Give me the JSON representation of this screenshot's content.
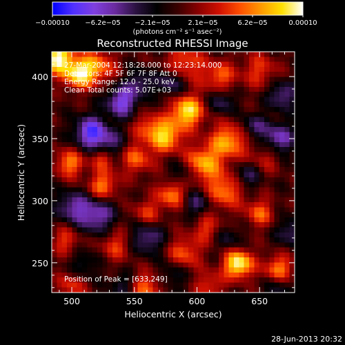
{
  "colorbar": {
    "ticks": [
      "−0.00010",
      "−6.2e−05",
      "−2.1e−05",
      "2.1e−05",
      "6.2e−05",
      "0.00010"
    ],
    "unit_label": "(photons cm⁻² s⁻¹ asec⁻²)",
    "colors": [
      "#0000ff",
      "#5030ff",
      "#7f3fe0",
      "#6a2a9e",
      "#2a1240",
      "#000000",
      "#3a0000",
      "#8a0000",
      "#d01000",
      "#ff5000",
      "#ff9a00",
      "#ffe000",
      "#ffffff"
    ]
  },
  "chart_data": {
    "type": "heatmap",
    "title": "Reconstructed RHESSI Image",
    "xlabel": "Heliocentric X (arcsec)",
    "ylabel": "Heliocentric Y (arcsec)",
    "xlim": [
      484,
      678
    ],
    "ylim": [
      226,
      420
    ],
    "xticks": [
      500,
      550,
      600,
      650
    ],
    "yticks": [
      250,
      300,
      350,
      400
    ],
    "zlim": [
      -0.0001,
      0.0001
    ],
    "info_lines": [
      "27-Mar-2004 12:18:28.000 to 12:23:14.000",
      "Detectors: 4F 5F 6F 7F 8F  Att 0",
      "Energy Range: 12.0 - 25.0 keV",
      "Clean    Total counts: 5.07E+03"
    ],
    "peak_label": "Position of Peak = [633,249]",
    "peak": [
      633,
      249
    ],
    "sources": [
      {
        "x": 488,
        "y": 415,
        "w": 0.0001,
        "s": 9
      },
      {
        "x": 505,
        "y": 402,
        "w": 8e-05,
        "s": 8
      },
      {
        "x": 520,
        "y": 408,
        "w": 6e-05,
        "s": 10
      },
      {
        "x": 590,
        "y": 410,
        "w": 5e-05,
        "s": 11
      },
      {
        "x": 618,
        "y": 400,
        "w": 5e-05,
        "s": 9
      },
      {
        "x": 650,
        "y": 405,
        "w": 4e-05,
        "s": 10
      },
      {
        "x": 592,
        "y": 372,
        "w": 9e-05,
        "s": 9
      },
      {
        "x": 575,
        "y": 352,
        "w": 8e-05,
        "s": 9
      },
      {
        "x": 560,
        "y": 360,
        "w": 4e-05,
        "s": 8
      },
      {
        "x": 625,
        "y": 348,
        "w": 7e-05,
        "s": 10
      },
      {
        "x": 498,
        "y": 330,
        "w": 6e-05,
        "s": 8
      },
      {
        "x": 525,
        "y": 335,
        "w": 5e-05,
        "s": 7
      },
      {
        "x": 552,
        "y": 334,
        "w": 5e-05,
        "s": 9
      },
      {
        "x": 605,
        "y": 330,
        "w": 7e-05,
        "s": 10
      },
      {
        "x": 655,
        "y": 335,
        "w": 3e-05,
        "s": 9
      },
      {
        "x": 525,
        "y": 312,
        "w": 6e-05,
        "s": 8
      },
      {
        "x": 580,
        "y": 305,
        "w": 6e-05,
        "s": 8
      },
      {
        "x": 622,
        "y": 308,
        "w": 6e-05,
        "s": 10
      },
      {
        "x": 560,
        "y": 290,
        "w": 4e-05,
        "s": 8
      },
      {
        "x": 650,
        "y": 290,
        "w": 5e-05,
        "s": 8
      },
      {
        "x": 608,
        "y": 278,
        "w": 4e-05,
        "s": 8
      },
      {
        "x": 495,
        "y": 268,
        "w": 4e-05,
        "s": 8
      },
      {
        "x": 535,
        "y": 264,
        "w": 4e-05,
        "s": 9
      },
      {
        "x": 590,
        "y": 258,
        "w": 5e-05,
        "s": 9
      },
      {
        "x": 633,
        "y": 249,
        "w": 0.0001,
        "s": 8
      },
      {
        "x": 665,
        "y": 245,
        "w": 6e-05,
        "s": 8
      },
      {
        "x": 500,
        "y": 232,
        "w": 4e-05,
        "s": 8
      },
      {
        "x": 560,
        "y": 230,
        "w": 5e-05,
        "s": 9
      },
      {
        "x": 610,
        "y": 232,
        "w": 4e-05,
        "s": 8
      },
      {
        "x": 540,
        "y": 380,
        "w": -7e-05,
        "s": 9
      },
      {
        "x": 515,
        "y": 355,
        "w": -8e-05,
        "s": 9
      },
      {
        "x": 530,
        "y": 345,
        "w": -5e-05,
        "s": 8
      },
      {
        "x": 580,
        "y": 395,
        "w": -5e-05,
        "s": 8
      },
      {
        "x": 555,
        "y": 395,
        "w": -4e-05,
        "s": 7
      },
      {
        "x": 620,
        "y": 380,
        "w": -4e-05,
        "s": 7
      },
      {
        "x": 668,
        "y": 385,
        "w": -5e-05,
        "s": 8
      },
      {
        "x": 665,
        "y": 350,
        "w": -6e-05,
        "s": 9
      },
      {
        "x": 645,
        "y": 360,
        "w": -4e-05,
        "s": 7
      },
      {
        "x": 640,
        "y": 320,
        "w": -4e-05,
        "s": 7
      },
      {
        "x": 520,
        "y": 288,
        "w": -6e-05,
        "s": 10
      },
      {
        "x": 500,
        "y": 295,
        "w": -5e-05,
        "s": 9
      },
      {
        "x": 560,
        "y": 270,
        "w": -5e-05,
        "s": 9
      },
      {
        "x": 600,
        "y": 298,
        "w": -4e-05,
        "s": 8
      },
      {
        "x": 675,
        "y": 275,
        "w": -4e-05,
        "s": 8
      },
      {
        "x": 625,
        "y": 270,
        "w": -3e-05,
        "s": 7
      },
      {
        "x": 510,
        "y": 248,
        "w": -3e-05,
        "s": 8
      },
      {
        "x": 580,
        "y": 240,
        "w": -3e-05,
        "s": 8
      },
      {
        "x": 665,
        "y": 230,
        "w": -3e-05,
        "s": 7
      },
      {
        "x": 540,
        "y": 232,
        "w": -3e-05,
        "s": 7
      },
      {
        "x": 588,
        "y": 322,
        "w": -3e-05,
        "s": 7
      }
    ]
  },
  "footer": {
    "timestamp": "28-Jun-2013 20:32"
  }
}
